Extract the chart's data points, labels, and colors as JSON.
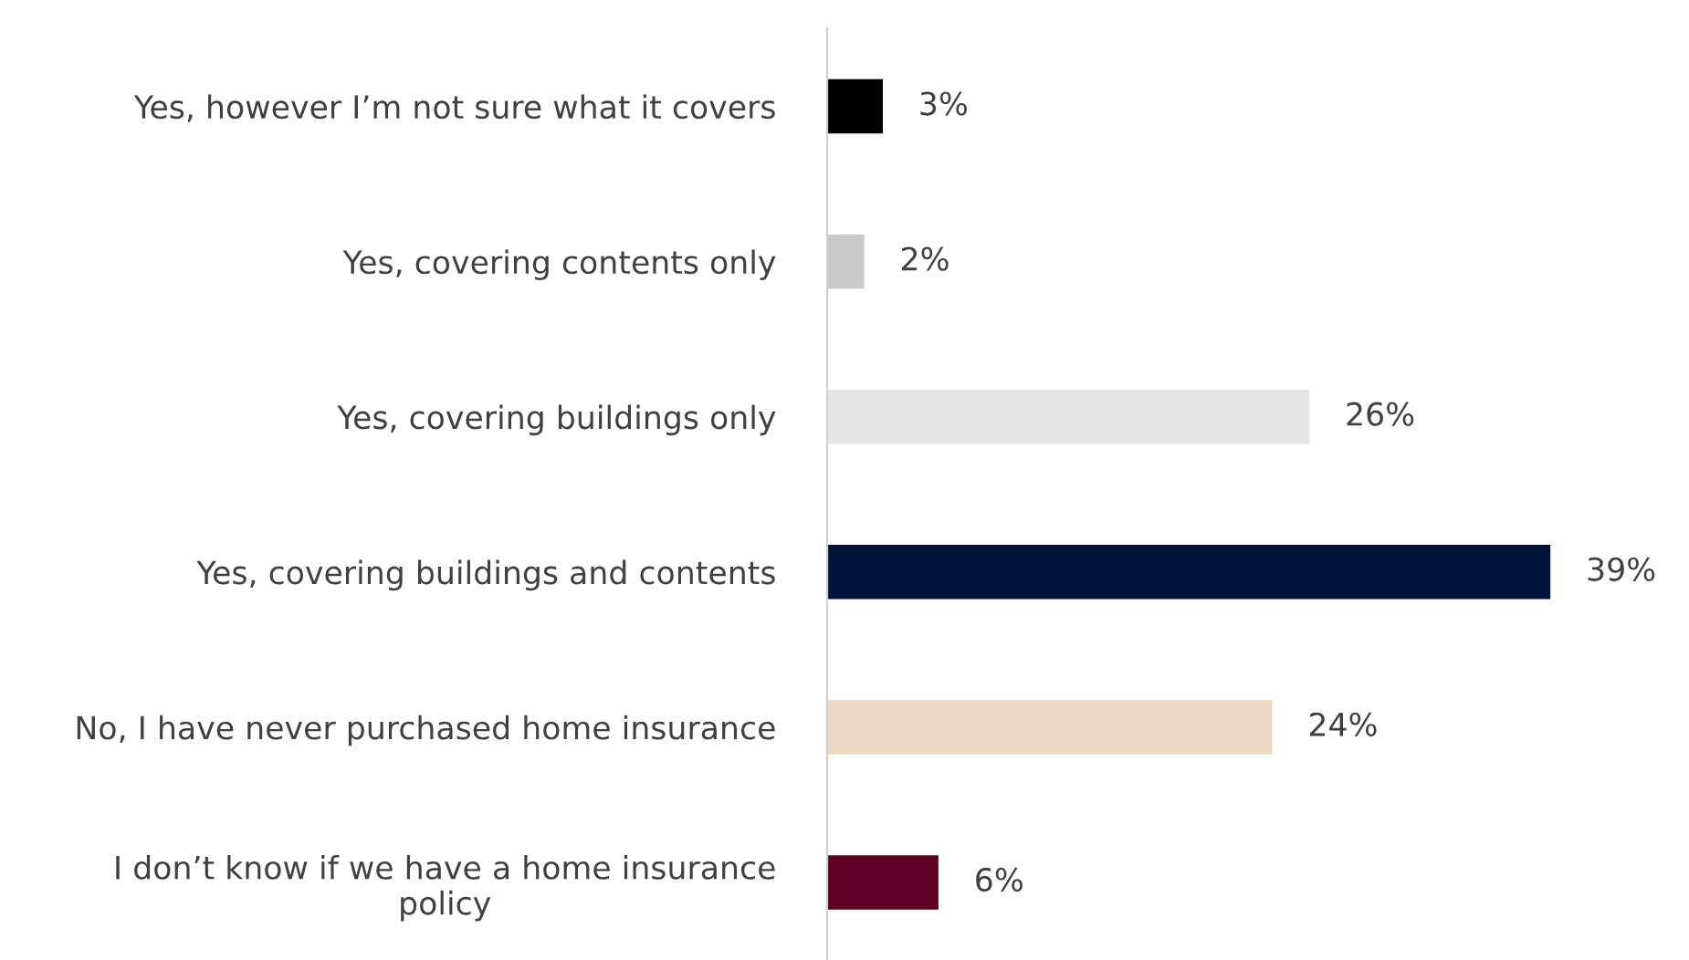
{
  "chart_data": {
    "type": "bar",
    "orientation": "horizontal",
    "categories": [
      "Yes, however I’m not sure what it covers",
      "Yes, covering contents only",
      "Yes, covering buildings only",
      "Yes, covering buildings and contents",
      "No, I have never purchased home insurance",
      "I don’t know if we have a home insurance\npolicy"
    ],
    "values": [
      3,
      2,
      26,
      39,
      24,
      6
    ],
    "colors": [
      "#000000",
      "#c9c9c9",
      "#e5e5e5",
      "#02133b",
      "#ecd8c4",
      "#5e0025"
    ],
    "value_labels": [
      "3%",
      "2%",
      "26%",
      "39%",
      "24%",
      "6%"
    ],
    "tick_labels": "y"
  }
}
